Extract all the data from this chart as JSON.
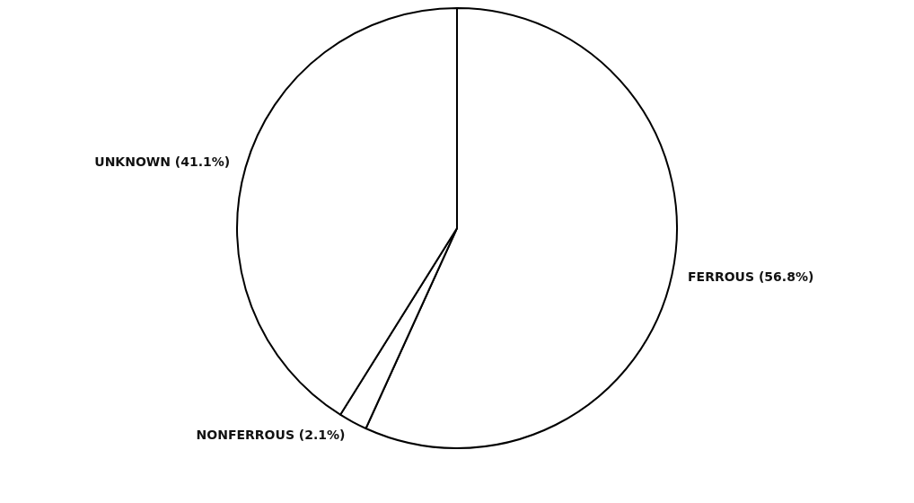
{
  "chart_data": {
    "type": "pie",
    "categories": [
      "FERROUS",
      "NONFERROUS",
      "UNKNOWN"
    ],
    "values": [
      56.8,
      2.1,
      41.1
    ],
    "value_labels": [
      "(56.8%)",
      "(2.1%)",
      "(41.1%)"
    ],
    "colors": [
      "#ffffff",
      "#ffffff",
      "#ffffff"
    ],
    "legend": false
  }
}
